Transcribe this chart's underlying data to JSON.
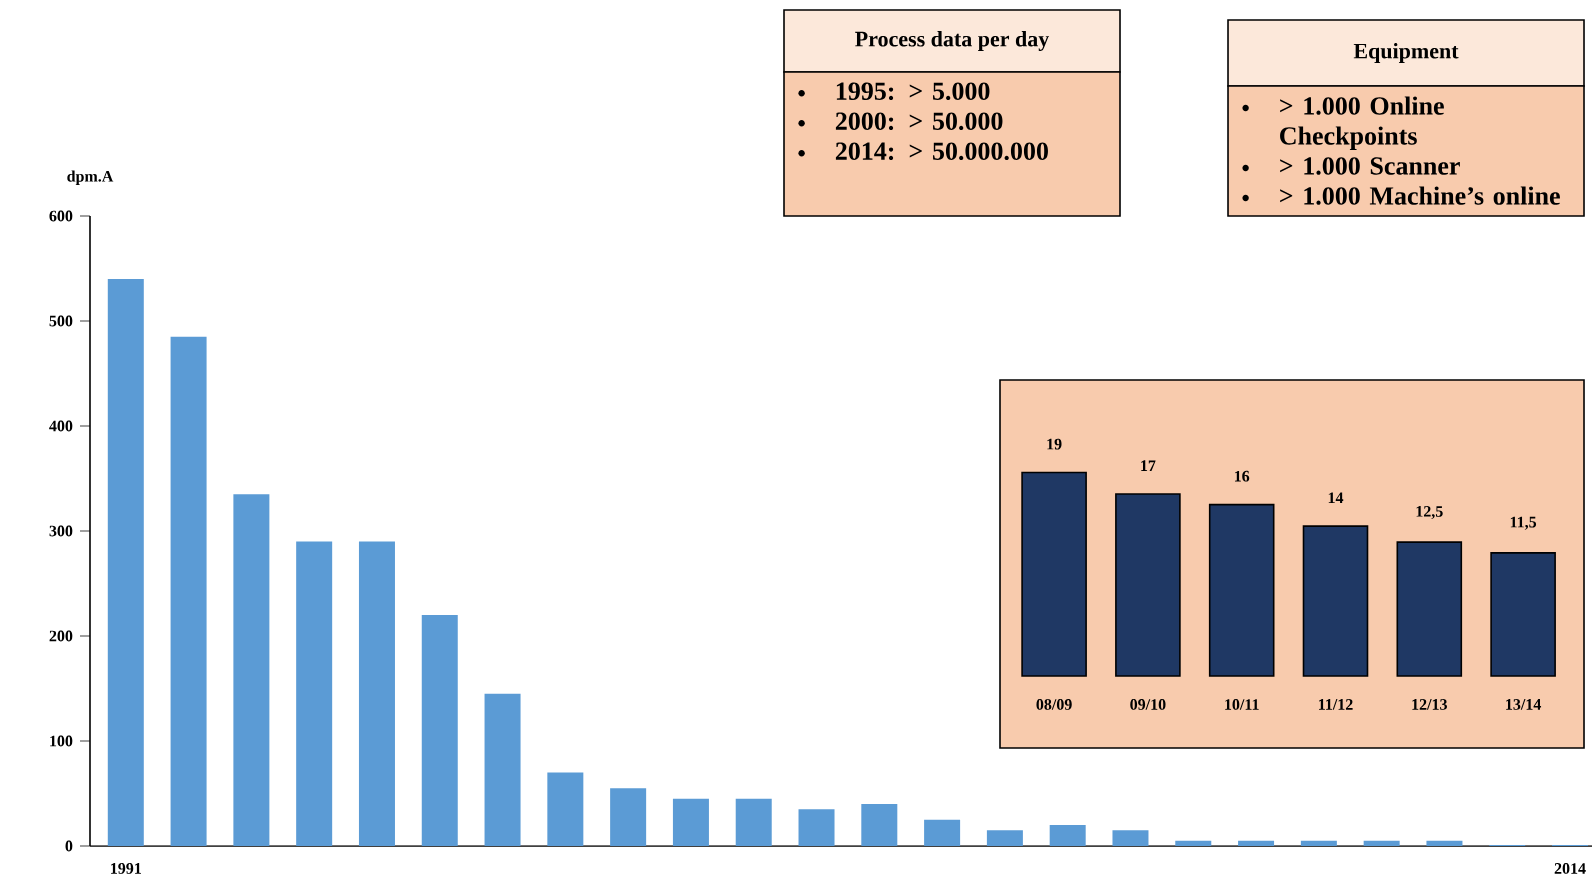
{
  "chart_data": [
    {
      "type": "bar",
      "ylabel": "dpm.A",
      "categories": [
        "1991",
        null,
        null,
        null,
        null,
        null,
        null,
        null,
        null,
        null,
        null,
        null,
        null,
        null,
        null,
        null,
        null,
        null,
        null,
        null,
        null,
        null,
        null,
        "2014"
      ],
      "values": [
        540,
        485,
        335,
        290,
        290,
        220,
        145,
        70,
        55,
        45,
        45,
        35,
        40,
        25,
        15,
        20,
        15,
        5,
        5,
        5,
        5,
        5,
        1,
        1
      ],
      "color": "#5b9bd5",
      "ylim": [
        0,
        600
      ],
      "yticks": [
        0,
        100,
        200,
        300,
        400,
        500,
        600
      ]
    },
    {
      "type": "bar",
      "categories": [
        "08/09",
        "09/10",
        "10/11",
        "11/12",
        "12/13",
        "13/14"
      ],
      "values": [
        19,
        17,
        16,
        14,
        12.5,
        11.5
      ],
      "value_labels": [
        "19",
        "17",
        "16",
        "14",
        "12,5",
        "11,5"
      ],
      "color": "#1f3864"
    },
    {
      "type": "other",
      "title": "Process data per day",
      "color": "#f8cbad",
      "annotations": [
        "1995: > 5.000",
        "2000: > 50.000",
        "2014: > 50.000.000"
      ]
    },
    {
      "type": "other",
      "title": "Equipment",
      "color": "#f8cbad",
      "annotations": [
        "> 1.000 Online Checkpoints",
        "> 1.000 Scanner",
        "> 1.000 Machine’s online"
      ]
    }
  ]
}
